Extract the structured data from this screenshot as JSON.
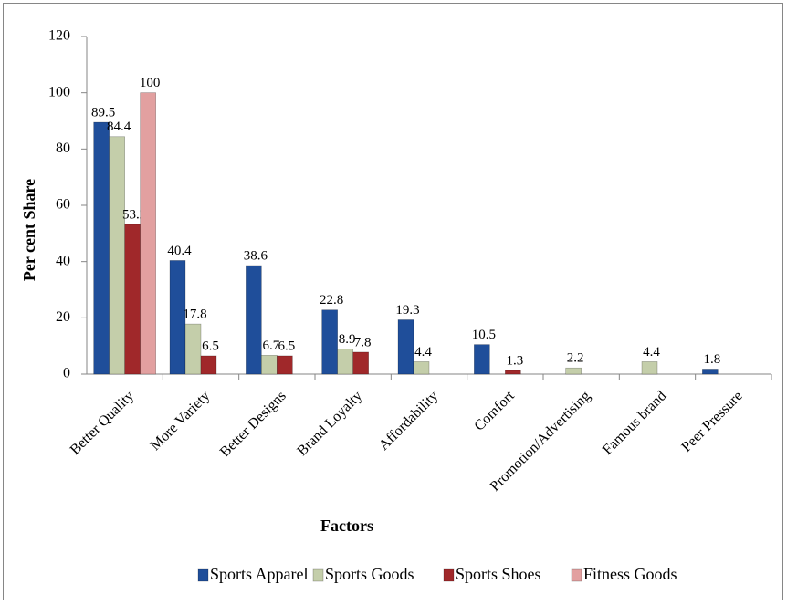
{
  "chart_data": {
    "type": "bar",
    "categories": [
      "Better Quality",
      "More Variety",
      "Better Designs",
      "Brand Loyalty",
      "Affordability",
      "Comfort",
      "Promotion/Advertising",
      "Famous brand",
      "Peer Pressure"
    ],
    "series": [
      {
        "name": "Sports Apparel",
        "color": "#1f4e9a",
        "values": [
          89.5,
          40.4,
          38.6,
          22.8,
          19.3,
          10.5,
          null,
          null,
          1.8
        ]
      },
      {
        "name": "Sports Goods",
        "color": "#c4ceaa",
        "values": [
          84.4,
          17.8,
          6.7,
          8.9,
          4.4,
          null,
          2.2,
          4.4,
          null
        ]
      },
      {
        "name": "Sports Shoes",
        "color": "#a0282a",
        "values": [
          53.2,
          6.5,
          6.5,
          7.8,
          null,
          1.3,
          null,
          null,
          null
        ]
      },
      {
        "name": "Fitness Goods",
        "color": "#e2a0a0",
        "values": [
          100,
          null,
          null,
          null,
          null,
          null,
          null,
          null,
          null
        ]
      }
    ],
    "ylabel": "Per cent Share",
    "xlabel": "Factors",
    "ylim": [
      0,
      120
    ],
    "yticks": [
      0,
      20,
      40,
      60,
      80,
      100,
      120
    ],
    "grid": false,
    "legend": "bottom"
  }
}
